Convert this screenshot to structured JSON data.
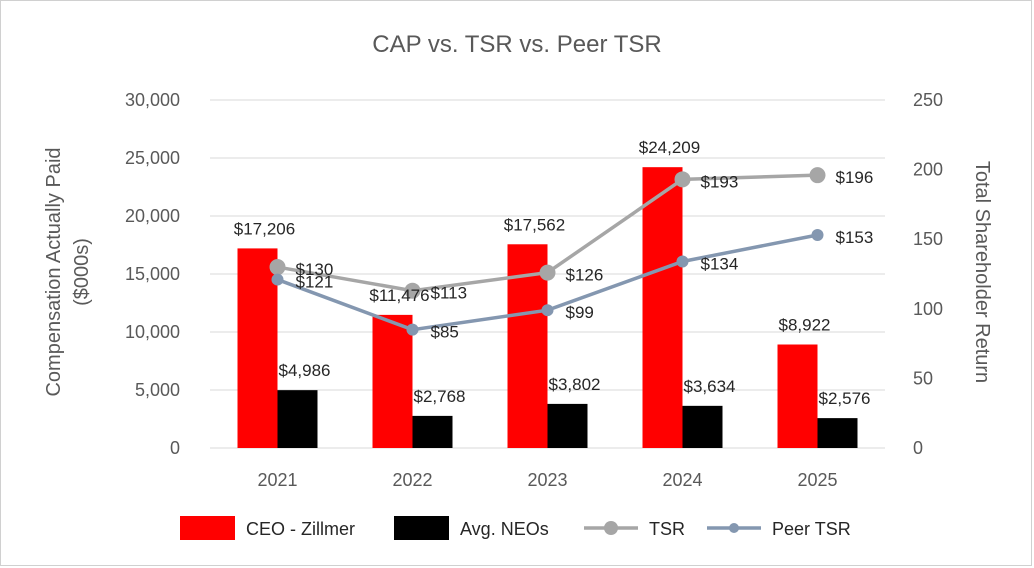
{
  "chart_data": {
    "type": "bar",
    "title": "CAP vs. TSR vs. Peer TSR",
    "categories": [
      "2021",
      "2022",
      "2023",
      "2024",
      "2025"
    ],
    "ylabel": "Compensation Actually Paid ($000s)",
    "ylabel_lines": [
      "Compensation Actually Paid",
      "($000s)"
    ],
    "y2label": "Total Shareholder Return",
    "ylim": [
      0,
      30000
    ],
    "y_ticks": [
      0,
      5000,
      10000,
      15000,
      20000,
      25000,
      30000
    ],
    "y_tick_labels": [
      "0",
      "5,000",
      "10,000",
      "15,000",
      "20,000",
      "25,000",
      "30,000"
    ],
    "y2lim": [
      0,
      250
    ],
    "y2_ticks": [
      0,
      50,
      100,
      150,
      200,
      250
    ],
    "y2_tick_labels": [
      "0",
      "50",
      "100",
      "150",
      "200",
      "250"
    ],
    "grid": true,
    "legend_position": "bottom",
    "series": [
      {
        "name": "CEO - Zillmer",
        "kind": "bar",
        "axis": "left",
        "color": "#ff0000",
        "values": [
          17206,
          11476,
          17562,
          24209,
          8922
        ],
        "labels": [
          "$17,206",
          "$11,476",
          "$17,562",
          "$24,209",
          "$8,922"
        ]
      },
      {
        "name": "Avg. NEOs",
        "kind": "bar",
        "axis": "left",
        "color": "#000000",
        "values": [
          4986,
          2768,
          3802,
          3634,
          2576
        ],
        "labels": [
          "$4,986",
          "$2,768",
          "$3,802",
          "$3,634",
          "$2,576"
        ]
      },
      {
        "name": "TSR",
        "kind": "line",
        "axis": "right",
        "color": "#a6a6a6",
        "values": [
          130,
          113,
          126,
          193,
          196
        ],
        "labels": [
          "$130",
          "$113",
          "$126",
          "$193",
          "$196"
        ]
      },
      {
        "name": "Peer TSR",
        "kind": "line",
        "axis": "right",
        "color": "#8497b0",
        "values": [
          121,
          85,
          99,
          134,
          153
        ],
        "labels": [
          "$121",
          "$85",
          "$99",
          "$134",
          "$153"
        ]
      }
    ]
  }
}
